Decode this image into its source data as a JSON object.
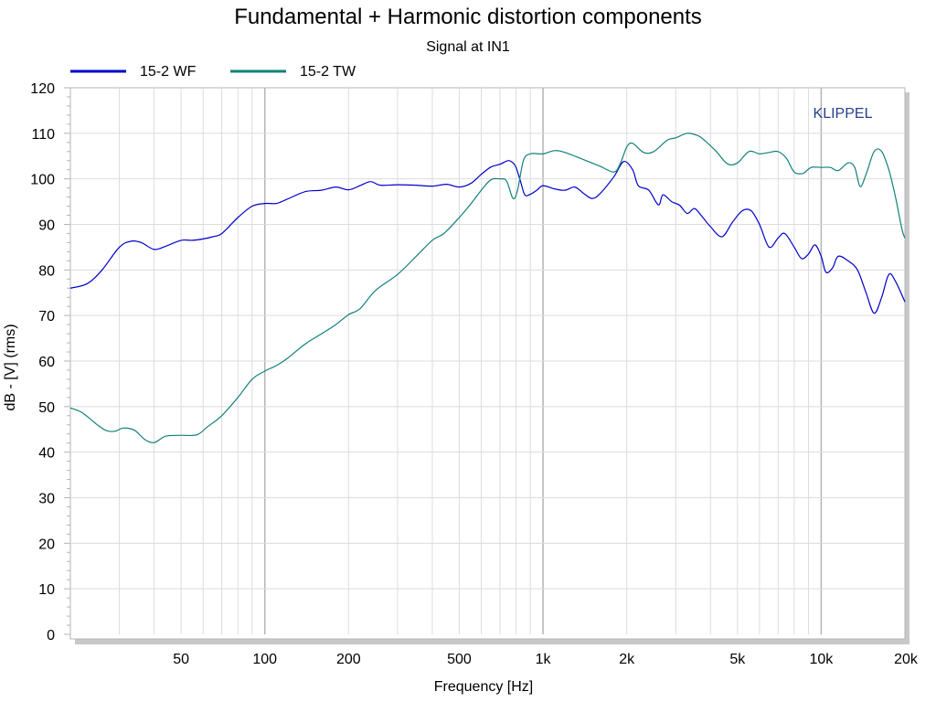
{
  "chart_data": {
    "type": "line",
    "title": "Fundamental + Harmonic distortion components",
    "subtitle": "Signal at IN1",
    "xlabel": "Frequency [Hz]",
    "ylabel": "dB - [V]  (rms)",
    "watermark": "KLIPPEL",
    "xscale": "log",
    "xlim": [
      20,
      20000
    ],
    "ylim": [
      0,
      120
    ],
    "grid": true,
    "legend_position": "top-left",
    "x_tick_values": [
      50,
      100,
      200,
      500,
      1000,
      2000,
      5000,
      10000,
      20000
    ],
    "x_tick_labels": [
      "50",
      "100",
      "200",
      "500",
      "1k",
      "2k",
      "5k",
      "10k",
      "20k"
    ],
    "y_tick_values": [
      0,
      10,
      20,
      30,
      40,
      50,
      60,
      70,
      80,
      90,
      100,
      110,
      120
    ],
    "y_tick_labels": [
      "0",
      "10",
      "20",
      "30",
      "40",
      "50",
      "60",
      "70",
      "80",
      "90",
      "100",
      "110",
      "120"
    ],
    "series": [
      {
        "name": "15-2 WF",
        "color": "#0000cc",
        "points": [
          [
            20,
            76
          ],
          [
            23,
            77
          ],
          [
            26,
            80
          ],
          [
            30,
            85
          ],
          [
            33,
            86.3
          ],
          [
            36,
            86
          ],
          [
            40,
            84.5
          ],
          [
            44,
            85.2
          ],
          [
            50,
            86.5
          ],
          [
            55,
            86.5
          ],
          [
            60,
            86.8
          ],
          [
            65,
            87.3
          ],
          [
            70,
            88
          ],
          [
            80,
            91.5
          ],
          [
            90,
            94
          ],
          [
            100,
            94.6
          ],
          [
            110,
            94.6
          ],
          [
            120,
            95.5
          ],
          [
            140,
            97.2
          ],
          [
            160,
            97.5
          ],
          [
            180,
            98.2
          ],
          [
            200,
            97.6
          ],
          [
            220,
            98.5
          ],
          [
            240,
            99.4
          ],
          [
            260,
            98.6
          ],
          [
            300,
            98.7
          ],
          [
            350,
            98.6
          ],
          [
            400,
            98.4
          ],
          [
            450,
            98.8
          ],
          [
            500,
            98.2
          ],
          [
            550,
            99
          ],
          [
            600,
            101
          ],
          [
            650,
            102.6
          ],
          [
            700,
            103.2
          ],
          [
            750,
            104
          ],
          [
            780,
            103.5
          ],
          [
            800,
            102.5
          ],
          [
            830,
            99.5
          ],
          [
            860,
            96.5
          ],
          [
            900,
            96.6
          ],
          [
            950,
            97.5
          ],
          [
            1000,
            98.5
          ],
          [
            1100,
            97.8
          ],
          [
            1200,
            97.5
          ],
          [
            1300,
            98.2
          ],
          [
            1400,
            96.8
          ],
          [
            1500,
            95.7
          ],
          [
            1600,
            96.7
          ],
          [
            1800,
            100.5
          ],
          [
            1950,
            103.8
          ],
          [
            2100,
            102
          ],
          [
            2200,
            98.5
          ],
          [
            2400,
            97.5
          ],
          [
            2600,
            94.3
          ],
          [
            2700,
            96.5
          ],
          [
            2900,
            95
          ],
          [
            3100,
            94.2
          ],
          [
            3300,
            92.4
          ],
          [
            3500,
            93.5
          ],
          [
            3700,
            92
          ],
          [
            4000,
            89.5
          ],
          [
            4400,
            87.3
          ],
          [
            4800,
            90.5
          ],
          [
            5200,
            93
          ],
          [
            5600,
            93
          ],
          [
            6000,
            90
          ],
          [
            6500,
            85
          ],
          [
            7000,
            87
          ],
          [
            7400,
            88
          ],
          [
            8000,
            85
          ],
          [
            8500,
            82.5
          ],
          [
            9000,
            83.5
          ],
          [
            9500,
            85.5
          ],
          [
            10000,
            83
          ],
          [
            10400,
            79.5
          ],
          [
            11000,
            80.5
          ],
          [
            11500,
            83
          ],
          [
            12500,
            82
          ],
          [
            13500,
            80
          ],
          [
            14500,
            75
          ],
          [
            15500,
            70.5
          ],
          [
            16500,
            74
          ],
          [
            17500,
            79
          ],
          [
            18500,
            77.5
          ],
          [
            20000,
            73
          ]
        ]
      },
      {
        "name": "15-2 TW",
        "color": "#12807a",
        "points": [
          [
            20,
            49.7
          ],
          [
            22,
            48.7
          ],
          [
            25,
            46
          ],
          [
            27,
            44.7
          ],
          [
            29,
            44.6
          ],
          [
            31,
            45.3
          ],
          [
            34,
            44.8
          ],
          [
            37,
            42.8
          ],
          [
            40,
            42.1
          ],
          [
            44,
            43.5
          ],
          [
            50,
            43.7
          ],
          [
            57,
            43.8
          ],
          [
            62,
            45.5
          ],
          [
            70,
            48
          ],
          [
            80,
            52
          ],
          [
            90,
            56
          ],
          [
            100,
            57.8
          ],
          [
            110,
            59
          ],
          [
            120,
            60.5
          ],
          [
            140,
            63.8
          ],
          [
            160,
            66
          ],
          [
            180,
            68
          ],
          [
            200,
            70.2
          ],
          [
            220,
            71.5
          ],
          [
            250,
            75.5
          ],
          [
            300,
            79
          ],
          [
            350,
            83
          ],
          [
            400,
            86.5
          ],
          [
            440,
            88
          ],
          [
            500,
            91.5
          ],
          [
            550,
            94.5
          ],
          [
            600,
            97.5
          ],
          [
            650,
            99.8
          ],
          [
            700,
            100
          ],
          [
            740,
            99.5
          ],
          [
            780,
            95.7
          ],
          [
            810,
            97.5
          ],
          [
            850,
            104
          ],
          [
            900,
            105.5
          ],
          [
            1000,
            105.5
          ],
          [
            1100,
            106.2
          ],
          [
            1200,
            105.8
          ],
          [
            1400,
            104.2
          ],
          [
            1600,
            102.8
          ],
          [
            1800,
            101.5
          ],
          [
            1900,
            103.5
          ],
          [
            2000,
            107
          ],
          [
            2100,
            107.8
          ],
          [
            2300,
            105.8
          ],
          [
            2500,
            106
          ],
          [
            2800,
            108.5
          ],
          [
            3000,
            109
          ],
          [
            3300,
            110
          ],
          [
            3600,
            109.5
          ],
          [
            3800,
            108.5
          ],
          [
            4200,
            106
          ],
          [
            4600,
            103.3
          ],
          [
            5000,
            103.5
          ],
          [
            5500,
            106
          ],
          [
            6000,
            105.5
          ],
          [
            6500,
            105.8
          ],
          [
            7000,
            106
          ],
          [
            7500,
            104.5
          ],
          [
            8000,
            101.5
          ],
          [
            8600,
            101.2
          ],
          [
            9200,
            102.5
          ],
          [
            10000,
            102.5
          ],
          [
            10800,
            102.5
          ],
          [
            11500,
            101.8
          ],
          [
            12500,
            103.5
          ],
          [
            13200,
            102.5
          ],
          [
            13800,
            98.3
          ],
          [
            14500,
            101
          ],
          [
            15500,
            106
          ],
          [
            16500,
            106
          ],
          [
            17500,
            102
          ],
          [
            18500,
            96
          ],
          [
            19500,
            89
          ],
          [
            20000,
            87
          ]
        ]
      }
    ]
  }
}
